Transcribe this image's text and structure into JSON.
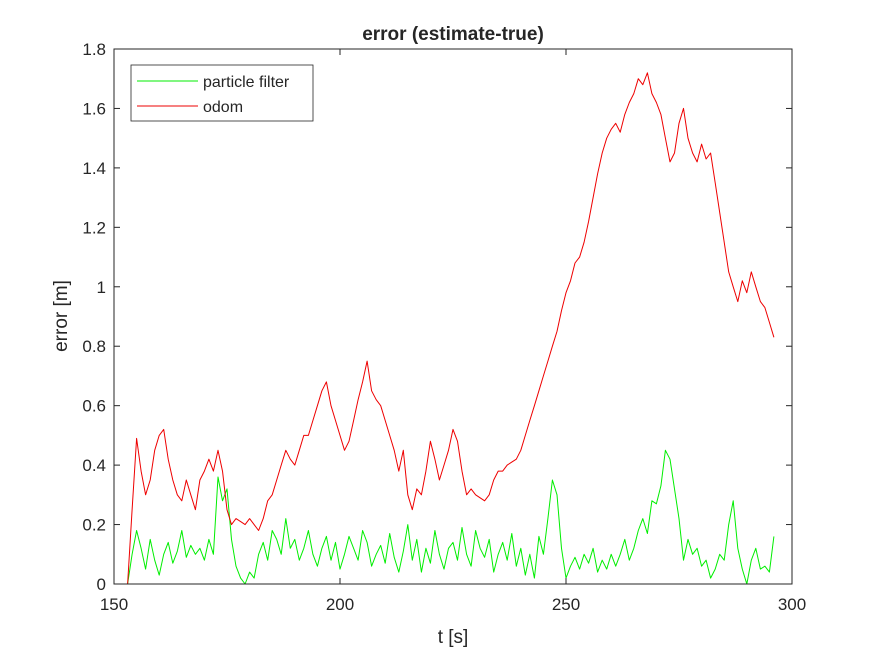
{
  "chart_data": {
    "type": "line",
    "title": "error (estimate-true)",
    "xlabel": "t [s]",
    "ylabel": "error [m]",
    "xlim": [
      150,
      300
    ],
    "ylim": [
      0,
      1.8
    ],
    "xticks": [
      150,
      200,
      250,
      300
    ],
    "xtick_labels": [
      "150",
      "200",
      "250",
      "300"
    ],
    "yticks": [
      0,
      0.2,
      0.4,
      0.6,
      0.8,
      1.0,
      1.2,
      1.4,
      1.6,
      1.8
    ],
    "ytick_labels": [
      "0",
      "0.2",
      "0.4",
      "0.6",
      "0.8",
      "1",
      "1.2",
      "1.4",
      "1.6",
      "1.8"
    ],
    "grid": false,
    "legend_position": "top-left",
    "series": [
      {
        "name": "particle filter",
        "color": "#00ee00",
        "x": [
          153,
          154,
          155,
          156,
          157,
          158,
          159,
          160,
          161,
          162,
          163,
          164,
          165,
          166,
          167,
          168,
          169,
          170,
          171,
          172,
          173,
          174,
          175,
          176,
          177,
          178,
          179,
          180,
          181,
          182,
          183,
          184,
          185,
          186,
          187,
          188,
          189,
          190,
          191,
          192,
          193,
          194,
          195,
          196,
          197,
          198,
          199,
          200,
          201,
          202,
          203,
          204,
          205,
          206,
          207,
          208,
          209,
          210,
          211,
          212,
          213,
          214,
          215,
          216,
          217,
          218,
          219,
          220,
          221,
          222,
          223,
          224,
          225,
          226,
          227,
          228,
          229,
          230,
          231,
          232,
          233,
          234,
          235,
          236,
          237,
          238,
          239,
          240,
          241,
          242,
          243,
          244,
          245,
          246,
          247,
          248,
          249,
          250,
          251,
          252,
          253,
          254,
          255,
          256,
          257,
          258,
          259,
          260,
          261,
          262,
          263,
          264,
          265,
          266,
          267,
          268,
          269,
          270,
          271,
          272,
          273,
          274,
          275,
          276,
          277,
          278,
          279,
          280,
          281,
          282,
          283,
          284,
          285,
          286,
          287,
          288,
          289,
          290,
          291,
          292,
          293,
          294,
          295,
          296
        ],
        "y": [
          0.0,
          0.1,
          0.18,
          0.12,
          0.05,
          0.15,
          0.08,
          0.03,
          0.1,
          0.14,
          0.07,
          0.11,
          0.18,
          0.09,
          0.13,
          0.1,
          0.12,
          0.08,
          0.15,
          0.1,
          0.36,
          0.28,
          0.32,
          0.15,
          0.06,
          0.02,
          0.0,
          0.04,
          0.02,
          0.1,
          0.14,
          0.08,
          0.18,
          0.15,
          0.1,
          0.22,
          0.12,
          0.15,
          0.08,
          0.12,
          0.18,
          0.1,
          0.06,
          0.12,
          0.16,
          0.08,
          0.14,
          0.05,
          0.1,
          0.16,
          0.12,
          0.08,
          0.18,
          0.14,
          0.06,
          0.1,
          0.13,
          0.07,
          0.17,
          0.09,
          0.04,
          0.11,
          0.2,
          0.08,
          0.15,
          0.04,
          0.12,
          0.07,
          0.18,
          0.1,
          0.05,
          0.12,
          0.14,
          0.08,
          0.19,
          0.1,
          0.06,
          0.18,
          0.12,
          0.09,
          0.15,
          0.04,
          0.1,
          0.14,
          0.08,
          0.17,
          0.06,
          0.12,
          0.03,
          0.1,
          0.02,
          0.16,
          0.1,
          0.22,
          0.35,
          0.3,
          0.12,
          0.02,
          0.06,
          0.09,
          0.05,
          0.1,
          0.07,
          0.12,
          0.04,
          0.08,
          0.05,
          0.1,
          0.06,
          0.1,
          0.15,
          0.08,
          0.12,
          0.18,
          0.22,
          0.17,
          0.28,
          0.27,
          0.33,
          0.45,
          0.42,
          0.32,
          0.22,
          0.08,
          0.15,
          0.1,
          0.12,
          0.06,
          0.08,
          0.02,
          0.05,
          0.1,
          0.08,
          0.2,
          0.28,
          0.12,
          0.05,
          0.0,
          0.08,
          0.12,
          0.05,
          0.06,
          0.04,
          0.16
        ]
      },
      {
        "name": "odom",
        "color": "#ee0000",
        "x": [
          153,
          154,
          155,
          156,
          157,
          158,
          159,
          160,
          161,
          162,
          163,
          164,
          165,
          166,
          167,
          168,
          169,
          170,
          171,
          172,
          173,
          174,
          175,
          176,
          177,
          178,
          179,
          180,
          181,
          182,
          183,
          184,
          185,
          186,
          187,
          188,
          189,
          190,
          191,
          192,
          193,
          194,
          195,
          196,
          197,
          198,
          199,
          200,
          201,
          202,
          203,
          204,
          205,
          206,
          207,
          208,
          209,
          210,
          211,
          212,
          213,
          214,
          215,
          216,
          217,
          218,
          219,
          220,
          221,
          222,
          223,
          224,
          225,
          226,
          227,
          228,
          229,
          230,
          231,
          232,
          233,
          234,
          235,
          236,
          237,
          238,
          239,
          240,
          241,
          242,
          243,
          244,
          245,
          246,
          247,
          248,
          249,
          250,
          251,
          252,
          253,
          254,
          255,
          256,
          257,
          258,
          259,
          260,
          261,
          262,
          263,
          264,
          265,
          266,
          267,
          268,
          269,
          270,
          271,
          272,
          273,
          274,
          275,
          276,
          277,
          278,
          279,
          280,
          281,
          282,
          283,
          284,
          285,
          286,
          287,
          288,
          289,
          290,
          291,
          292,
          293,
          294,
          295,
          296
        ],
        "y": [
          0.0,
          0.25,
          0.49,
          0.38,
          0.3,
          0.35,
          0.45,
          0.5,
          0.52,
          0.42,
          0.35,
          0.3,
          0.28,
          0.35,
          0.3,
          0.25,
          0.35,
          0.38,
          0.42,
          0.38,
          0.45,
          0.38,
          0.25,
          0.2,
          0.22,
          0.21,
          0.2,
          0.22,
          0.2,
          0.18,
          0.22,
          0.28,
          0.3,
          0.35,
          0.4,
          0.45,
          0.42,
          0.4,
          0.45,
          0.5,
          0.5,
          0.55,
          0.6,
          0.65,
          0.68,
          0.6,
          0.55,
          0.5,
          0.45,
          0.48,
          0.55,
          0.62,
          0.68,
          0.75,
          0.65,
          0.62,
          0.6,
          0.55,
          0.5,
          0.45,
          0.38,
          0.45,
          0.3,
          0.25,
          0.32,
          0.3,
          0.38,
          0.48,
          0.42,
          0.35,
          0.4,
          0.45,
          0.52,
          0.48,
          0.38,
          0.3,
          0.32,
          0.3,
          0.29,
          0.28,
          0.3,
          0.35,
          0.38,
          0.38,
          0.4,
          0.41,
          0.42,
          0.45,
          0.5,
          0.55,
          0.6,
          0.65,
          0.7,
          0.75,
          0.8,
          0.85,
          0.92,
          0.98,
          1.02,
          1.08,
          1.1,
          1.15,
          1.22,
          1.3,
          1.38,
          1.45,
          1.5,
          1.53,
          1.55,
          1.52,
          1.58,
          1.62,
          1.65,
          1.7,
          1.68,
          1.72,
          1.65,
          1.62,
          1.58,
          1.5,
          1.42,
          1.45,
          1.55,
          1.6,
          1.5,
          1.45,
          1.42,
          1.48,
          1.43,
          1.45,
          1.35,
          1.25,
          1.15,
          1.05,
          1.0,
          0.95,
          1.02,
          0.98,
          1.05,
          1.0,
          0.95,
          0.93,
          0.88,
          0.83
        ]
      }
    ]
  }
}
